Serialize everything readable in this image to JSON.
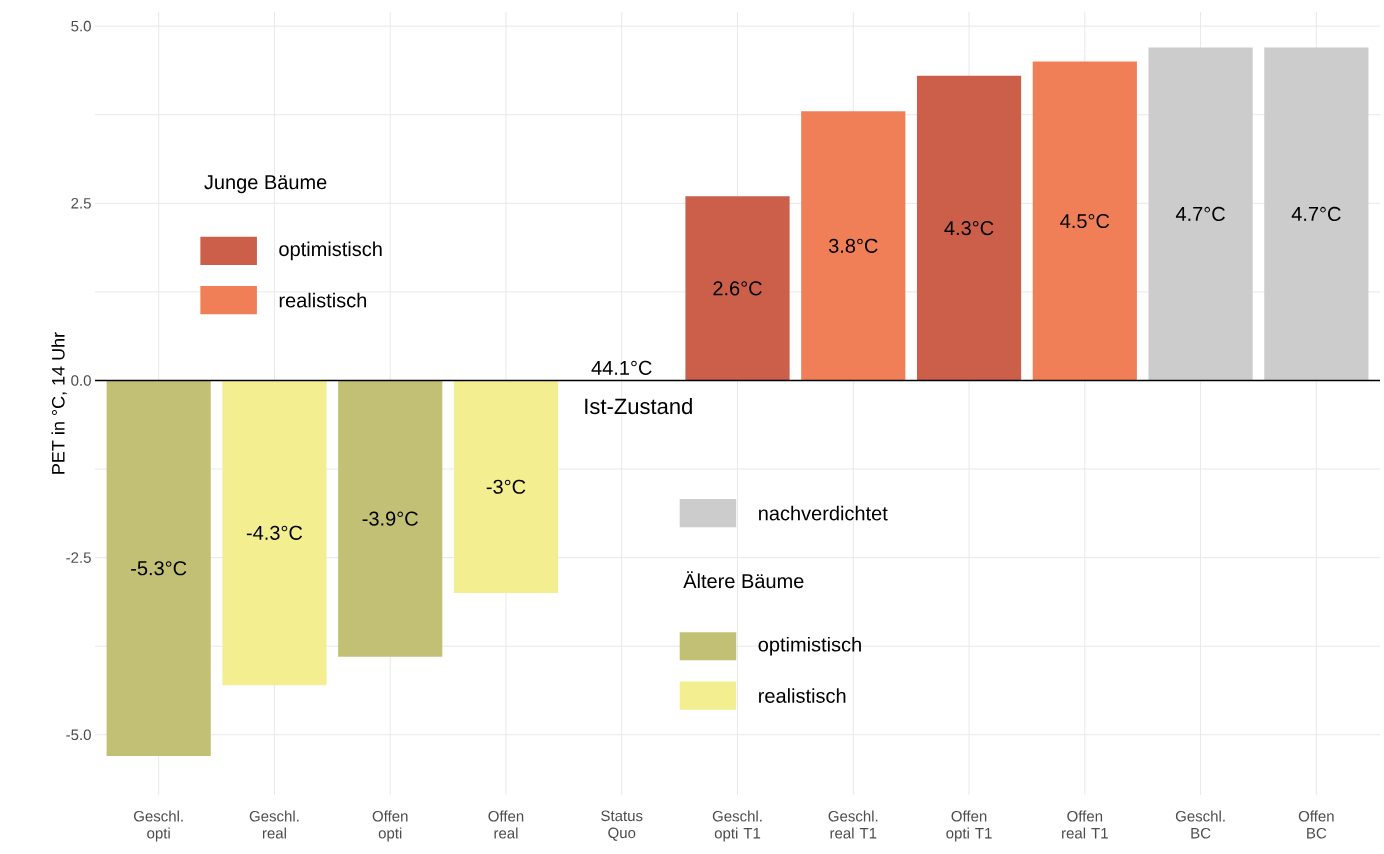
{
  "chart_data": {
    "type": "bar",
    "ylabel": "PET in °C, 14 Uhr",
    "categories": [
      "Geschl. opti",
      "Geschl. real",
      "Offen opti",
      "Offen real",
      "Status Quo",
      "Geschl. opti T1",
      "Geschl. real T1",
      "Offen opti T1",
      "Offen real T1",
      "Geschl. BC",
      "Offen BC"
    ],
    "series": [
      {
        "name": "optimistisch",
        "color": "#cb5f4a",
        "values": [
          null,
          null,
          null,
          null,
          null,
          2.6,
          null,
          4.3,
          null,
          null,
          null
        ],
        "value_labels": [
          null,
          null,
          null,
          null,
          null,
          "2.6°C",
          null,
          "4.3°C",
          null,
          null,
          null
        ]
      },
      {
        "name": "realistisch",
        "color": "#f07f57",
        "values": [
          null,
          null,
          null,
          null,
          null,
          null,
          3.8,
          null,
          4.5,
          null,
          null
        ],
        "value_labels": [
          null,
          null,
          null,
          null,
          null,
          null,
          "3.8°C",
          null,
          "4.5°C",
          null,
          null
        ]
      },
      {
        "name": "nachverdichtet",
        "color": "#cccccc",
        "values": [
          null,
          null,
          null,
          null,
          null,
          null,
          null,
          null,
          null,
          4.7,
          4.7
        ],
        "value_labels": [
          null,
          null,
          null,
          null,
          null,
          null,
          null,
          null,
          null,
          "4.7°C",
          "4.7°C"
        ]
      },
      {
        "name": "optimistisch",
        "color": "#c2c074",
        "values": [
          -5.3,
          null,
          -3.9,
          null,
          null,
          null,
          null,
          null,
          null,
          null,
          null
        ],
        "value_labels": [
          "-5.3°C",
          null,
          "-3.9°C",
          null,
          null,
          null,
          null,
          null,
          null,
          null,
          null
        ]
      },
      {
        "name": "realistisch",
        "color": "#f3ee8f",
        "values": [
          null,
          -4.3,
          null,
          -3,
          null,
          null,
          null,
          null,
          null,
          null,
          null
        ],
        "value_labels": [
          null,
          "-4.3°C",
          null,
          "-3°C",
          null,
          null,
          null,
          null,
          null,
          null,
          null
        ]
      }
    ],
    "annotations": [
      "Junge Bäume",
      "Ältere Bäume",
      {
        "text": "44.1°C",
        "x": "Status Quo",
        "y": 0
      },
      {
        "text": "Ist-Zustand",
        "x": "Status Quo",
        "y": 0
      }
    ],
    "ylim": [
      -5.85,
      5.2
    ],
    "yticks": [
      {
        "value": -5,
        "label": "-5.0"
      },
      {
        "value": -3.75,
        "label": null
      },
      -2.5,
      {
        "value": -1.25,
        "label": null
      },
      {
        "value": 0,
        "label": "0.0"
      },
      {
        "value": 1.25,
        "label": null
      },
      2.5,
      {
        "value": 3.75,
        "label": null
      },
      {
        "value": 5,
        "label": "5.0"
      }
    ],
    "ref_lines": [
      {
        "axis": "y",
        "value": 0,
        "color": "#000000"
      }
    ],
    "grid": true,
    "legend": "left"
  }
}
